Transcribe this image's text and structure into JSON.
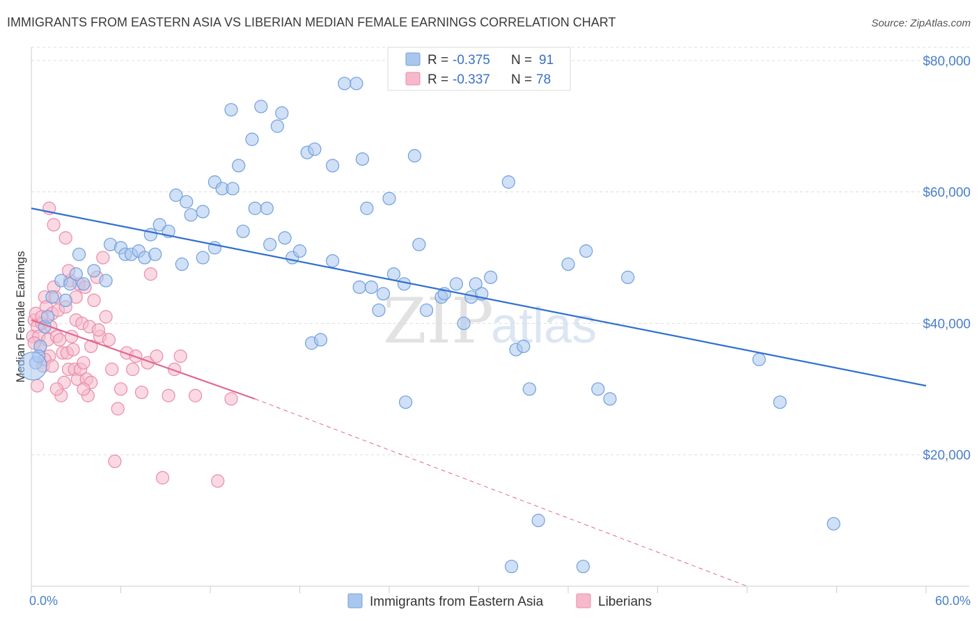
{
  "header": {
    "title": "IMMIGRANTS FROM EASTERN ASIA VS LIBERIAN MEDIAN FEMALE EARNINGS CORRELATION CHART",
    "source": "Source: ZipAtlas.com"
  },
  "watermark": {
    "zip": "ZIP",
    "atlas": "atlas"
  },
  "colors": {
    "blue_fill": "#a9c7ee",
    "blue_stroke": "#6f9fdc",
    "blue_line": "#2f6fcf",
    "pink_fill": "#f6b9cc",
    "pink_stroke": "#ea8aa9",
    "pink_line": "#e0678f",
    "grid": "#dcdcdc",
    "axis_text": "#4a7fc8"
  },
  "legend": {
    "rows": [
      {
        "r_label": "R =",
        "r_value": "-0.375",
        "n_label": "N =",
        "n_value": "91"
      },
      {
        "r_label": "R =",
        "r_value": "-0.337",
        "n_label": "N =",
        "n_value": "78"
      }
    ]
  },
  "chart_data": {
    "type": "scatter",
    "title": "IMMIGRANTS FROM EASTERN ASIA VS LIBERIAN MEDIAN FEMALE EARNINGS CORRELATION CHART",
    "xlabel": "",
    "ylabel": "Median Female Earnings",
    "xlim": [
      0,
      60
    ],
    "ylim": [
      0,
      82000
    ],
    "x_tick_labels": [
      "0.0%",
      "60.0%"
    ],
    "y_ticks": [
      20000,
      40000,
      60000,
      80000
    ],
    "y_tick_labels": [
      "$20,000",
      "$40,000",
      "$60,000",
      "$80,000"
    ],
    "grid": true,
    "legend_position": "top-center",
    "series": [
      {
        "name": "Immigrants from Eastern Asia",
        "color": "#a9c7ee",
        "trend": {
          "x": [
            0,
            60
          ],
          "y": [
            57500,
            30500
          ],
          "style": "solid"
        },
        "points": [
          [
            0.3,
            34000
          ],
          [
            0.6,
            36500
          ],
          [
            0.9,
            39500
          ],
          [
            1.1,
            41000
          ],
          [
            1.4,
            44000
          ],
          [
            2.0,
            46500
          ],
          [
            2.3,
            43500
          ],
          [
            2.6,
            46000
          ],
          [
            3.0,
            47500
          ],
          [
            3.2,
            50500
          ],
          [
            3.5,
            46000
          ],
          [
            4.2,
            48000
          ],
          [
            5.0,
            46500
          ],
          [
            5.3,
            52000
          ],
          [
            6.0,
            51500
          ],
          [
            6.3,
            50500
          ],
          [
            6.7,
            50500
          ],
          [
            7.2,
            51000
          ],
          [
            7.6,
            50000
          ],
          [
            8.3,
            50500
          ],
          [
            8.0,
            53500
          ],
          [
            8.6,
            55000
          ],
          [
            9.2,
            54000
          ],
          [
            9.7,
            59500
          ],
          [
            10.1,
            49000
          ],
          [
            10.4,
            58500
          ],
          [
            10.7,
            56500
          ],
          [
            11.5,
            50000
          ],
          [
            11.5,
            57000
          ],
          [
            12.3,
            51500
          ],
          [
            12.3,
            61500
          ],
          [
            12.8,
            60500
          ],
          [
            13.4,
            72500
          ],
          [
            13.5,
            60500
          ],
          [
            13.9,
            64000
          ],
          [
            14.2,
            54000
          ],
          [
            14.8,
            68000
          ],
          [
            15.0,
            57500
          ],
          [
            15.4,
            73000
          ],
          [
            15.8,
            57500
          ],
          [
            16.0,
            52000
          ],
          [
            16.5,
            70000
          ],
          [
            16.8,
            72000
          ],
          [
            17.0,
            53000
          ],
          [
            17.5,
            50000
          ],
          [
            18.0,
            51000
          ],
          [
            18.5,
            66000
          ],
          [
            18.8,
            37000
          ],
          [
            19.0,
            66500
          ],
          [
            19.4,
            37500
          ],
          [
            20.2,
            49500
          ],
          [
            20.2,
            64000
          ],
          [
            21.0,
            76500
          ],
          [
            21.8,
            76500
          ],
          [
            22.0,
            45500
          ],
          [
            22.2,
            65000
          ],
          [
            22.5,
            57500
          ],
          [
            22.8,
            45500
          ],
          [
            23.3,
            42000
          ],
          [
            23.6,
            44500
          ],
          [
            24.0,
            59000
          ],
          [
            24.3,
            47500
          ],
          [
            25.0,
            46000
          ],
          [
            25.1,
            28000
          ],
          [
            25.7,
            65500
          ],
          [
            26.0,
            52000
          ],
          [
            26.5,
            42000
          ],
          [
            27.5,
            44000
          ],
          [
            27.7,
            44500
          ],
          [
            28.5,
            46000
          ],
          [
            29.0,
            40000
          ],
          [
            29.5,
            44000
          ],
          [
            29.8,
            46000
          ],
          [
            30.2,
            44500
          ],
          [
            30.8,
            47000
          ],
          [
            32.0,
            61500
          ],
          [
            32.2,
            3000
          ],
          [
            32.5,
            36000
          ],
          [
            33.0,
            36500
          ],
          [
            33.4,
            30000
          ],
          [
            34.0,
            10000
          ],
          [
            36.0,
            49000
          ],
          [
            37.0,
            3000
          ],
          [
            37.2,
            51000
          ],
          [
            38.0,
            30000
          ],
          [
            38.8,
            28500
          ],
          [
            40.0,
            47000
          ],
          [
            48.8,
            34500
          ],
          [
            50.2,
            28000
          ],
          [
            53.8,
            9500
          ],
          [
            0.5,
            35000
          ]
        ]
      },
      {
        "name": "Liberians",
        "color": "#f6b9cc",
        "trend": {
          "x": [
            0,
            15
          ],
          "y": [
            40500,
            28500
          ],
          "style": "solid",
          "extension": {
            "x": [
              15,
              48
            ],
            "y": [
              28500,
              0
            ],
            "style": "dashed"
          }
        },
        "points": [
          [
            0.1,
            38000
          ],
          [
            0.2,
            40500
          ],
          [
            0.3,
            41500
          ],
          [
            0.4,
            39500
          ],
          [
            0.5,
            38000
          ],
          [
            0.6,
            36500
          ],
          [
            0.7,
            40000
          ],
          [
            0.8,
            33500
          ],
          [
            0.9,
            44000
          ],
          [
            1.0,
            42500
          ],
          [
            1.1,
            37500
          ],
          [
            1.2,
            35000
          ],
          [
            1.3,
            39500
          ],
          [
            1.4,
            41500
          ],
          [
            1.5,
            45500
          ],
          [
            1.6,
            44000
          ],
          [
            1.7,
            38000
          ],
          [
            1.8,
            42000
          ],
          [
            1.9,
            37500
          ],
          [
            2.0,
            29000
          ],
          [
            2.1,
            35500
          ],
          [
            2.2,
            31000
          ],
          [
            2.3,
            42500
          ],
          [
            2.4,
            35500
          ],
          [
            2.5,
            33000
          ],
          [
            2.6,
            46500
          ],
          [
            2.7,
            38000
          ],
          [
            2.8,
            36000
          ],
          [
            2.9,
            33000
          ],
          [
            3.0,
            40500
          ],
          [
            3.1,
            31500
          ],
          [
            3.2,
            46000
          ],
          [
            3.3,
            33000
          ],
          [
            3.4,
            40000
          ],
          [
            3.5,
            34000
          ],
          [
            3.6,
            45500
          ],
          [
            3.7,
            31500
          ],
          [
            3.8,
            29000
          ],
          [
            3.9,
            39500
          ],
          [
            4.0,
            31000
          ],
          [
            4.2,
            43500
          ],
          [
            4.4,
            47000
          ],
          [
            4.6,
            38000
          ],
          [
            4.8,
            50000
          ],
          [
            5.0,
            41000
          ],
          [
            5.2,
            37500
          ],
          [
            5.4,
            33000
          ],
          [
            5.6,
            19000
          ],
          [
            5.8,
            27000
          ],
          [
            6.0,
            30000
          ],
          [
            6.4,
            35500
          ],
          [
            6.8,
            33000
          ],
          [
            7.0,
            35000
          ],
          [
            7.4,
            29500
          ],
          [
            7.8,
            34000
          ],
          [
            8.0,
            47500
          ],
          [
            8.4,
            35000
          ],
          [
            8.8,
            16500
          ],
          [
            9.2,
            29000
          ],
          [
            9.6,
            33000
          ],
          [
            10.0,
            35000
          ],
          [
            11.0,
            29000
          ],
          [
            12.5,
            16000
          ],
          [
            13.4,
            28500
          ],
          [
            1.2,
            57500
          ],
          [
            1.5,
            55000
          ],
          [
            2.3,
            53000
          ],
          [
            0.4,
            30500
          ],
          [
            0.9,
            34500
          ],
          [
            1.7,
            30000
          ],
          [
            2.5,
            48000
          ],
          [
            3.0,
            44000
          ],
          [
            3.5,
            30000
          ],
          [
            4.0,
            36500
          ],
          [
            4.5,
            39000
          ],
          [
            0.2,
            37000
          ],
          [
            0.7,
            41000
          ],
          [
            1.4,
            33500
          ]
        ]
      }
    ]
  }
}
